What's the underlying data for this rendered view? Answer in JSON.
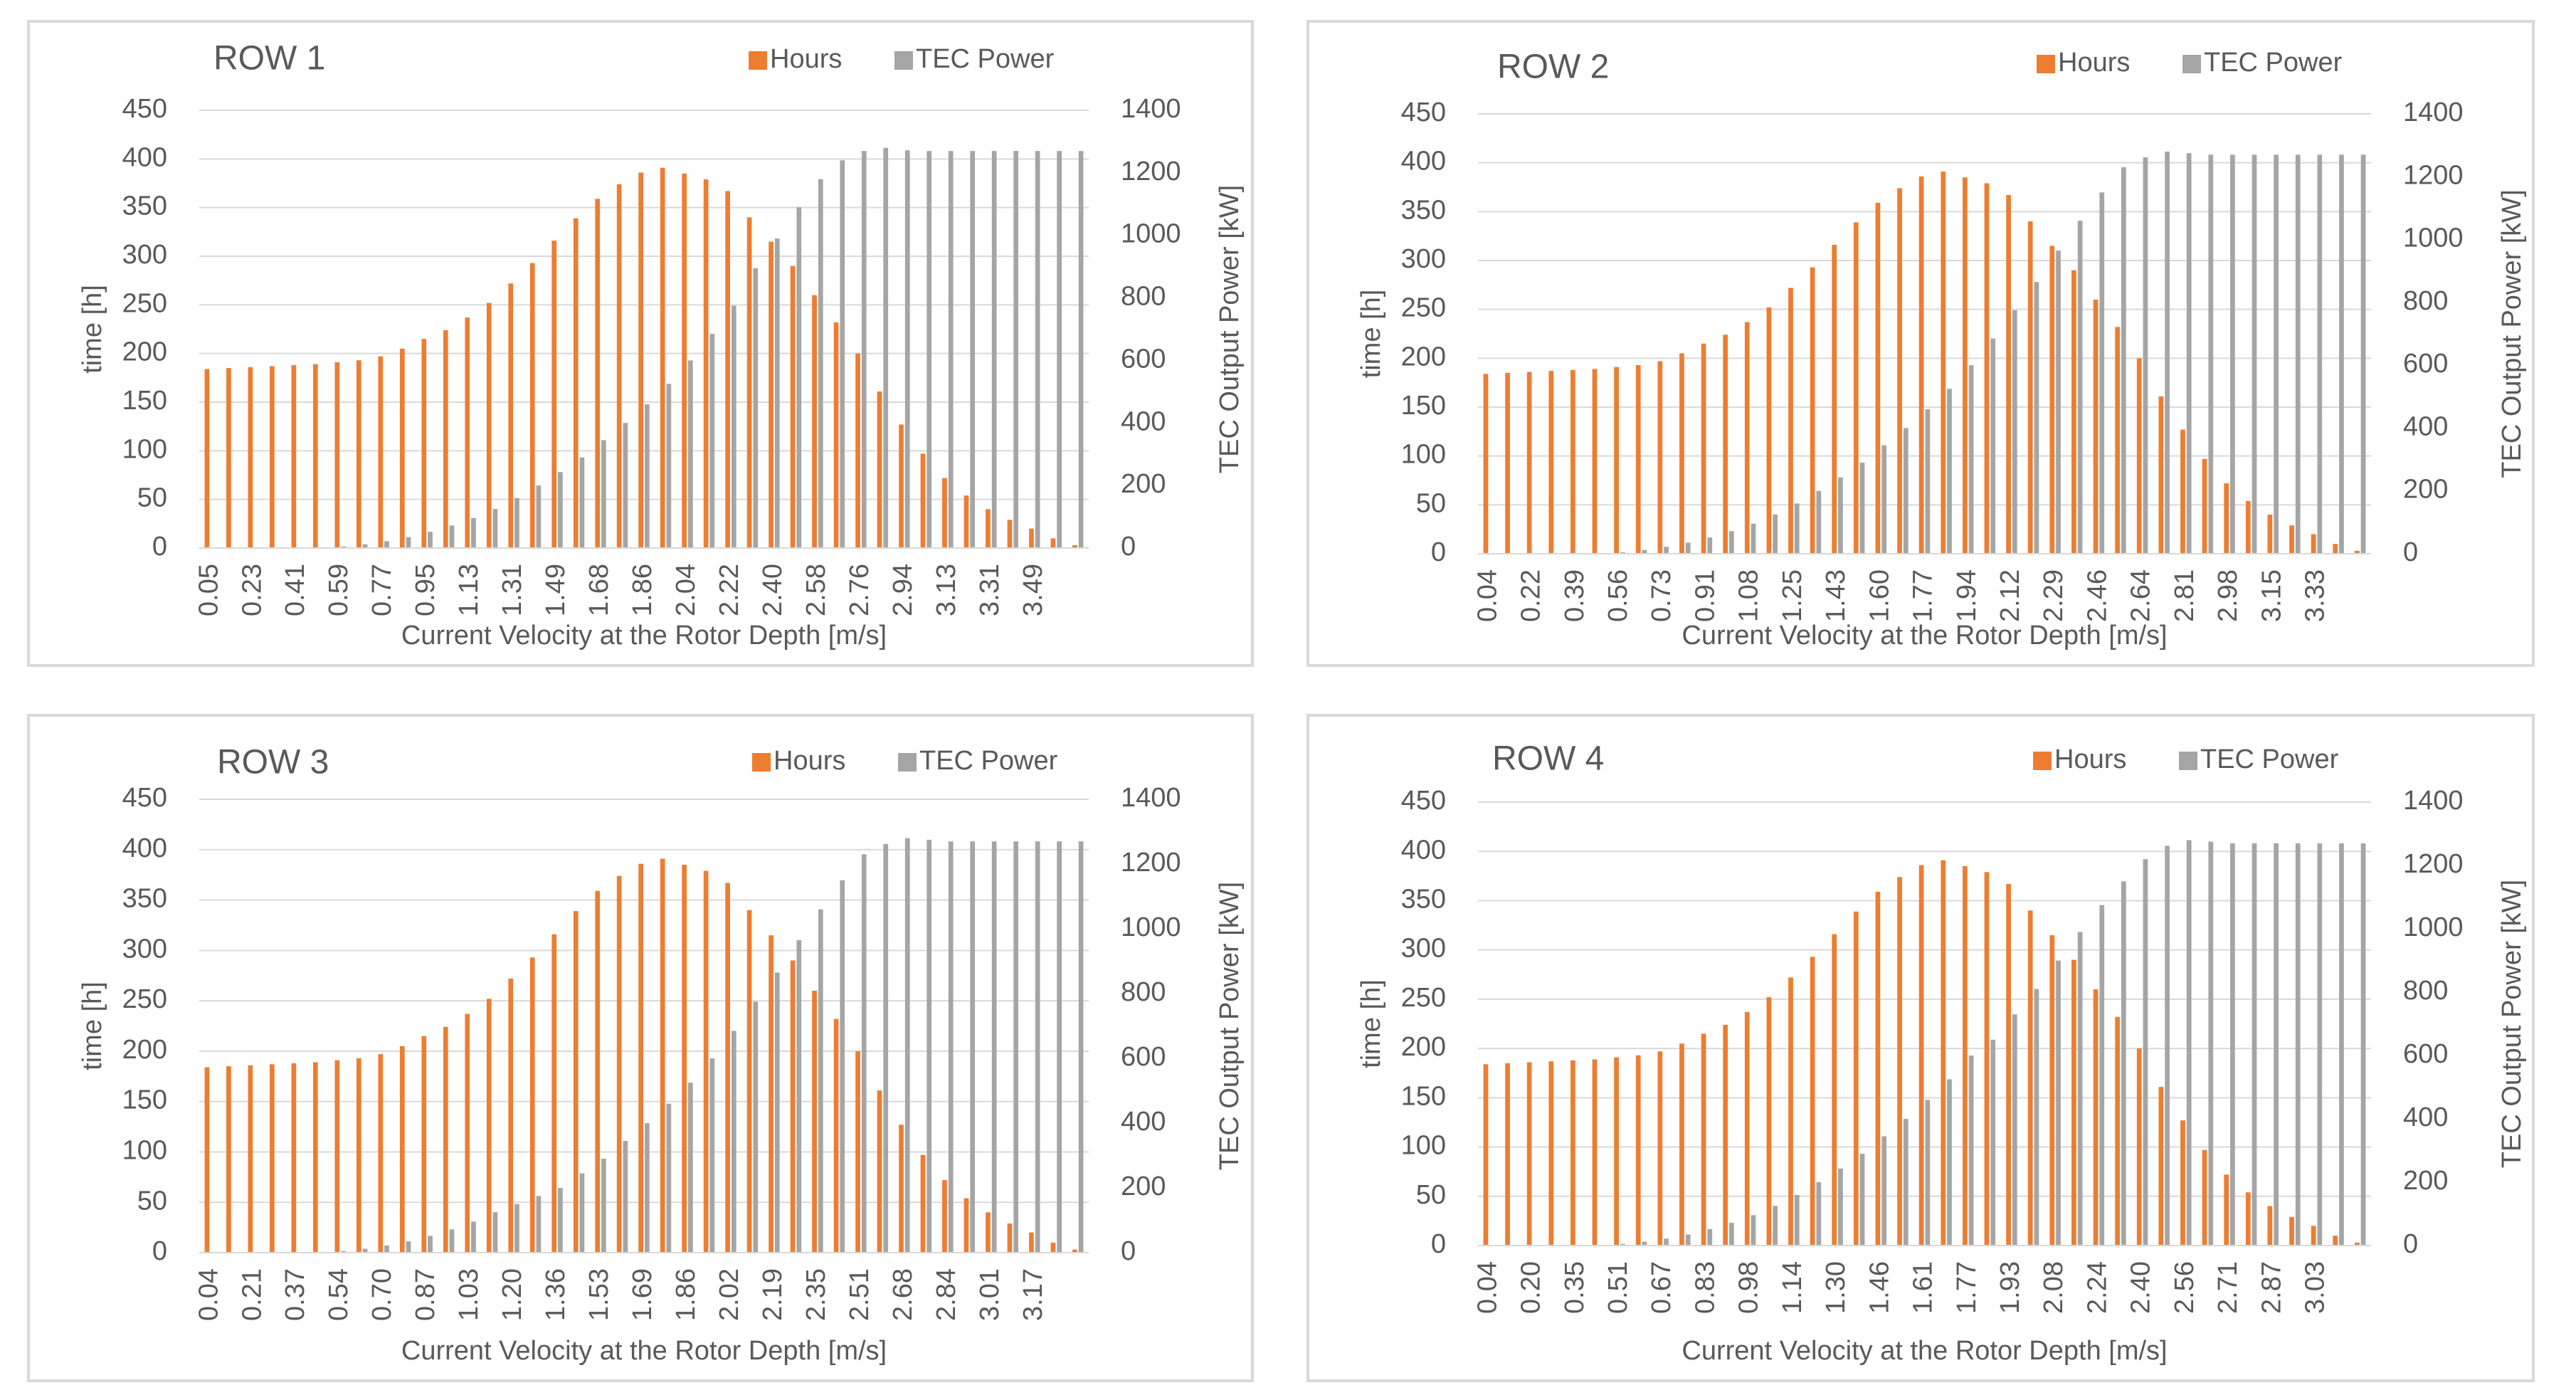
{
  "colors": {
    "hours": "#ED7D31",
    "power": "#A5A5A5",
    "text": "#595959",
    "grid": "#D9D9D9",
    "border": "#D9D9D9",
    "background": "#FFFFFF"
  },
  "chart_data": [
    {
      "type": "bar",
      "title": "ROW 1",
      "xlabel": "Current Velocity at the Rotor Depth [m/s]",
      "ylabel": "time [h]",
      "y2label": "TEC Output Power [kW]",
      "ylim": [
        0,
        450
      ],
      "y2lim": [
        0,
        1400
      ],
      "yticks": [
        "0",
        "50",
        "100",
        "150",
        "200",
        "250",
        "300",
        "350",
        "400",
        "450"
      ],
      "y2ticks": [
        "0",
        "200",
        "400",
        "600",
        "800",
        "1000",
        "1200",
        "1400"
      ],
      "legend": [
        "Hours",
        "TEC Power"
      ],
      "legend_position": "top-right",
      "x_tick_labels": [
        "0.05",
        "0.23",
        "0.41",
        "0.59",
        "0.77",
        "0.95",
        "1.13",
        "1.31",
        "1.49",
        "1.68",
        "1.86",
        "2.04",
        "2.22",
        "2.40",
        "2.58",
        "2.76",
        "2.94",
        "3.13",
        "3.31",
        "3.49"
      ],
      "series": [
        {
          "name": "Hours",
          "axis": "left",
          "values": [
            184,
            185,
            186,
            187,
            188,
            189,
            191,
            193,
            197,
            205,
            215,
            224,
            237,
            252,
            272,
            293,
            316,
            339,
            359,
            374,
            386,
            391,
            385,
            379,
            367,
            340,
            315,
            290,
            260,
            232,
            200,
            161,
            127,
            97,
            72,
            54,
            40,
            29,
            20,
            10,
            3
          ]
        },
        {
          "name": "TEC Power",
          "axis": "right",
          "values": [
            0,
            0,
            0,
            0,
            0,
            0,
            5,
            12,
            22,
            35,
            52,
            72,
            96,
            125,
            160,
            200,
            243,
            290,
            345,
            400,
            460,
            525,
            600,
            685,
            775,
            895,
            990,
            1090,
            1180,
            1240,
            1270,
            1280,
            1272,
            1270,
            1270,
            1270,
            1270,
            1270,
            1270,
            1270,
            1270
          ]
        }
      ]
    },
    {
      "type": "bar",
      "title": "ROW 2",
      "xlabel": "Current Velocity at the Rotor Depth [m/s]",
      "ylabel": "time [h]",
      "y2label": "TEC Output Power [kW]",
      "ylim": [
        0,
        450
      ],
      "y2lim": [
        0,
        1400
      ],
      "yticks": [
        "0",
        "50",
        "100",
        "150",
        "200",
        "250",
        "300",
        "350",
        "400",
        "450"
      ],
      "y2ticks": [
        "0",
        "200",
        "400",
        "600",
        "800",
        "1000",
        "1200",
        "1400"
      ],
      "legend": [
        "Hours",
        "TEC Power"
      ],
      "legend_position": "top-right",
      "x_tick_labels": [
        "0.04",
        "0.22",
        "0.39",
        "0.56",
        "0.73",
        "0.91",
        "1.08",
        "1.25",
        "1.43",
        "1.60",
        "1.77",
        "1.94",
        "2.12",
        "2.29",
        "2.46",
        "2.64",
        "2.81",
        "2.98",
        "3.15",
        "3.33"
      ],
      "series": [
        {
          "name": "Hours",
          "axis": "left",
          "values": [
            184,
            185,
            186,
            187,
            188,
            189,
            191,
            193,
            197,
            205,
            215,
            224,
            237,
            252,
            272,
            293,
            316,
            339,
            359,
            374,
            386,
            391,
            385,
            379,
            367,
            340,
            315,
            290,
            260,
            232,
            200,
            161,
            127,
            97,
            72,
            54,
            40,
            29,
            20,
            10,
            3
          ]
        },
        {
          "name": "TEC Power",
          "axis": "right",
          "values": [
            0,
            0,
            0,
            0,
            0,
            0,
            5,
            12,
            22,
            35,
            52,
            72,
            96,
            125,
            160,
            200,
            243,
            290,
            345,
            400,
            460,
            525,
            600,
            685,
            775,
            865,
            965,
            1060,
            1150,
            1230,
            1262,
            1280,
            1275,
            1270,
            1270,
            1270,
            1270,
            1270,
            1270,
            1270,
            1270
          ]
        }
      ]
    },
    {
      "type": "bar",
      "title": "ROW 3",
      "xlabel": "Current Velocity at the Rotor Depth [m/s]",
      "ylabel": "time [h]",
      "y2label": "TEC Output Power [kW]",
      "ylim": [
        0,
        450
      ],
      "y2lim": [
        0,
        1400
      ],
      "yticks": [
        "0",
        "50",
        "100",
        "150",
        "200",
        "250",
        "300",
        "350",
        "400",
        "450"
      ],
      "y2ticks": [
        "0",
        "200",
        "400",
        "600",
        "800",
        "1000",
        "1200",
        "1400"
      ],
      "legend": [
        "Hours",
        "TEC Power"
      ],
      "legend_position": "top-right",
      "x_tick_labels": [
        "0.04",
        "0.21",
        "0.37",
        "0.54",
        "0.70",
        "0.87",
        "1.03",
        "1.20",
        "1.36",
        "1.53",
        "1.69",
        "1.86",
        "2.02",
        "2.19",
        "2.35",
        "2.51",
        "2.68",
        "2.84",
        "3.01",
        "3.17"
      ],
      "series": [
        {
          "name": "Hours",
          "axis": "left",
          "values": [
            184,
            185,
            186,
            187,
            188,
            189,
            191,
            193,
            197,
            205,
            215,
            224,
            237,
            252,
            272,
            293,
            316,
            339,
            359,
            374,
            386,
            391,
            385,
            379,
            367,
            340,
            315,
            290,
            260,
            232,
            200,
            161,
            127,
            97,
            72,
            54,
            40,
            29,
            20,
            10,
            3
          ]
        },
        {
          "name": "TEC Power",
          "axis": "right",
          "values": [
            0,
            0,
            0,
            0,
            0,
            0,
            5,
            12,
            22,
            35,
            52,
            72,
            96,
            125,
            150,
            175,
            200,
            245,
            290,
            345,
            400,
            460,
            525,
            600,
            685,
            775,
            865,
            965,
            1060,
            1150,
            1230,
            1262,
            1280,
            1275,
            1270,
            1270,
            1270,
            1270,
            1270,
            1270,
            1270
          ]
        }
      ]
    },
    {
      "type": "bar",
      "title": "ROW 4",
      "xlabel": "Current Velocity at the Rotor Depth [m/s]",
      "ylabel": "time [h]",
      "y2label": "TEC Output Power [kW]",
      "ylim": [
        0,
        450
      ],
      "y2lim": [
        0,
        1400
      ],
      "yticks": [
        "0",
        "50",
        "100",
        "150",
        "200",
        "250",
        "300",
        "350",
        "400",
        "450"
      ],
      "y2ticks": [
        "0",
        "200",
        "400",
        "600",
        "800",
        "1000",
        "1200",
        "1400"
      ],
      "legend": [
        "Hours",
        "TEC Power"
      ],
      "legend_position": "top-right",
      "x_tick_labels": [
        "0.04",
        "0.20",
        "0.35",
        "0.51",
        "0.67",
        "0.83",
        "0.98",
        "1.14",
        "1.30",
        "1.46",
        "1.61",
        "1.77",
        "1.93",
        "2.08",
        "2.24",
        "2.40",
        "2.56",
        "2.71",
        "2.87",
        "3.03"
      ],
      "series": [
        {
          "name": "Hours",
          "axis": "left",
          "values": [
            184,
            185,
            186,
            187,
            188,
            189,
            191,
            193,
            197,
            205,
            215,
            224,
            237,
            252,
            272,
            293,
            316,
            339,
            359,
            374,
            386,
            391,
            385,
            379,
            367,
            340,
            315,
            290,
            260,
            232,
            200,
            161,
            127,
            97,
            72,
            54,
            40,
            29,
            20,
            10,
            3
          ]
        },
        {
          "name": "TEC Power",
          "axis": "right",
          "values": [
            0,
            0,
            0,
            0,
            0,
            0,
            5,
            12,
            22,
            35,
            52,
            72,
            96,
            125,
            160,
            200,
            243,
            290,
            345,
            400,
            460,
            525,
            600,
            650,
            730,
            810,
            900,
            990,
            1075,
            1150,
            1220,
            1262,
            1280,
            1275,
            1270,
            1270,
            1270,
            1270,
            1270,
            1270,
            1270
          ]
        }
      ]
    }
  ]
}
